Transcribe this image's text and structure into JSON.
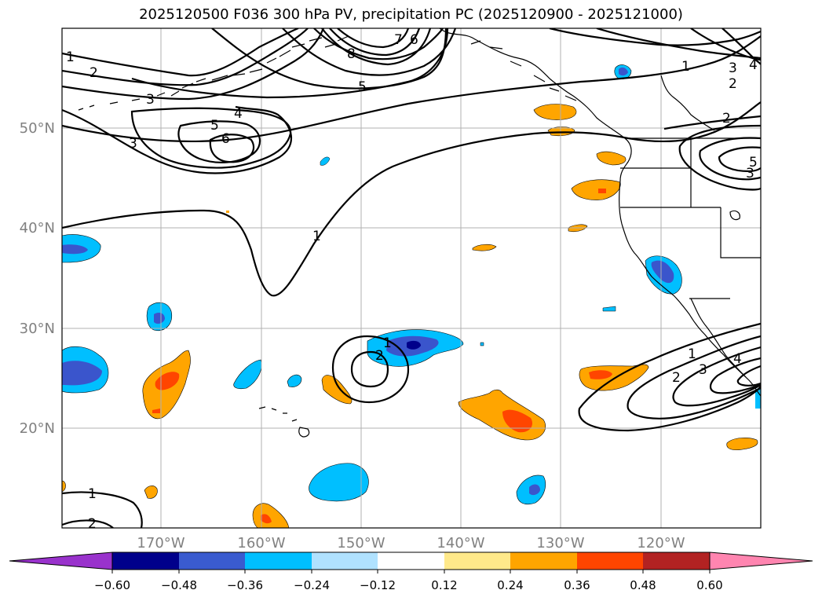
{
  "title": "2025120500 F036 300 hPa PV, precipitation PC (2025120900 - 2025121000)",
  "colors": {
    "grid": "#b0b0b0",
    "coast": "#000000",
    "pv_contour": "#000000",
    "neg_strong": "#3a55cc",
    "neg_mid": "#00bfff",
    "neg_darkest": "#00008b",
    "pos_mid": "#ffa500",
    "pos_strong": "#ff4500"
  },
  "axes": {
    "lon_labels": [
      "170°W",
      "160°W",
      "150°W",
      "140°W",
      "130°W",
      "120°W"
    ],
    "lat_labels": [
      "50°N",
      "40°N",
      "30°N",
      "20°N"
    ]
  },
  "contour_labels": {
    "c1a": "1",
    "c2a": "2",
    "c3a": "3",
    "c3b": "3",
    "c4a": "4",
    "c5a": "5",
    "c6a": "6",
    "c5b": "5",
    "c8a": "8",
    "c7a": "7",
    "c6b": "6",
    "c1b": "1",
    "c3c": "3",
    "c2b": "2",
    "c2c": "2",
    "c4b": "4",
    "c3d": "3",
    "c1c": "1",
    "c1d": "1",
    "c2d": "2",
    "c1e": "1",
    "c2e": "2",
    "c3e": "3",
    "c4c": "4",
    "c1f": "1",
    "c2f": "2",
    "c5c": "5"
  },
  "colorbar": {
    "colors": [
      "#9932cc",
      "#00008b",
      "#3a5bcf",
      "#00bfff",
      "#b0e2ff",
      "#ffffff",
      "#ffe98a",
      "#ffa500",
      "#ff4500",
      "#b22222",
      "#ff85b0"
    ],
    "tick_labels": [
      "−0.60",
      "−0.48",
      "−0.36",
      "−0.24",
      "−0.12",
      "0.12",
      "0.24",
      "0.36",
      "0.48",
      "0.60"
    ]
  }
}
